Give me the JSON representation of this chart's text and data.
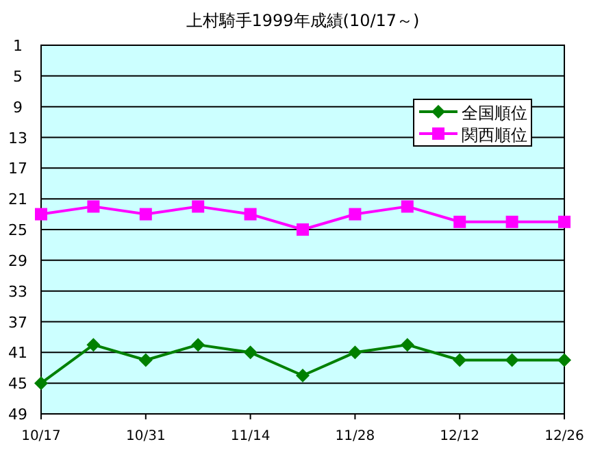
{
  "chart_data": {
    "type": "line",
    "title": "上村騎手1999年成績(10/17～)",
    "categories": [
      "10/17",
      null,
      "10/31",
      null,
      "11/14",
      null,
      "11/28",
      null,
      "12/12",
      null,
      "12/26"
    ],
    "series": [
      {
        "name": "全国順位",
        "color": "#008000",
        "marker": "diamond",
        "values": [
          45,
          40,
          42,
          40,
          41,
          44,
          41,
          40,
          42,
          42,
          42
        ]
      },
      {
        "name": "関西順位",
        "color": "#ff00ff",
        "marker": "square",
        "values": [
          23,
          22,
          23,
          22,
          23,
          25,
          23,
          22,
          24,
          24,
          24
        ]
      }
    ],
    "ylim": [
      49,
      1
    ],
    "yticks": [
      1,
      5,
      9,
      13,
      17,
      21,
      25,
      29,
      33,
      37,
      41,
      45,
      49
    ],
    "grid": "y",
    "legend": "right"
  }
}
